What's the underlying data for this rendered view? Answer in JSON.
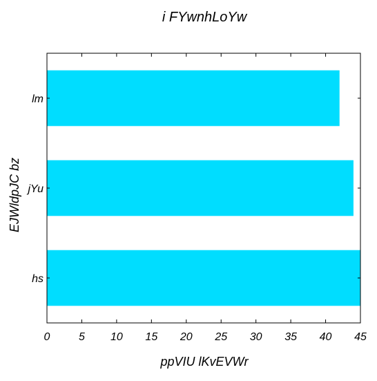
{
  "chart_data": {
    "type": "bar",
    "orientation": "horizontal",
    "title": "i FYwnhLoYw",
    "xlabel": "ppVIU lKvEVWr",
    "ylabel": "EJWldpJC bz",
    "categories": [
      "hs",
      "jYu",
      "lm"
    ],
    "values": [
      45,
      44,
      42
    ],
    "xlim": [
      0,
      45
    ],
    "xticks": [
      0,
      5,
      10,
      15,
      20,
      25,
      30,
      35,
      40,
      45
    ],
    "grid": false,
    "bar_color": "#00DDFF"
  }
}
